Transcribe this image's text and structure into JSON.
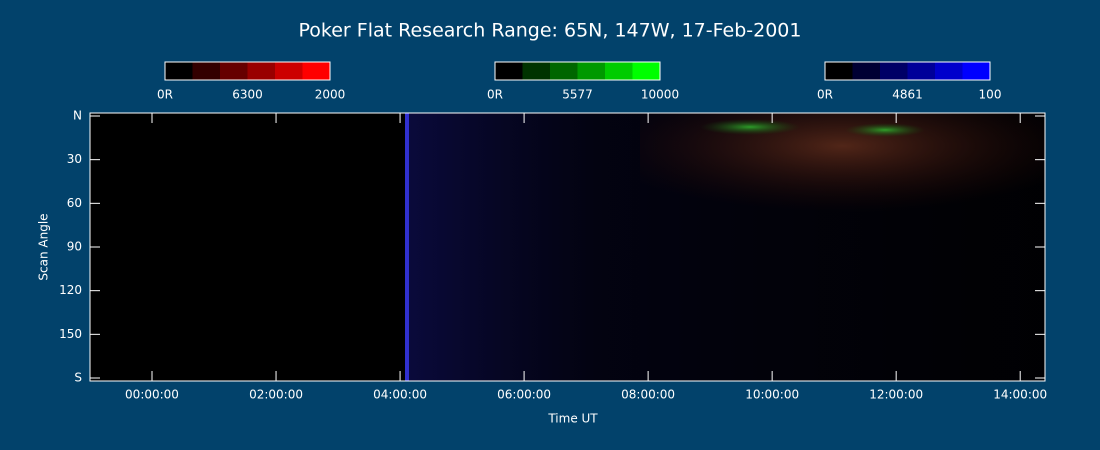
{
  "chart_data": {
    "type": "keogram",
    "title": "Poker Flat Research Range: 65N, 147W, 17-Feb-2001",
    "x_label": "Time UT",
    "y_label": "Scan Angle",
    "xlim": [
      -1,
      14.4
    ],
    "xticks": [
      {
        "value": 0,
        "label": "00:00:00"
      },
      {
        "value": 2,
        "label": "02:00:00"
      },
      {
        "value": 4,
        "label": "04:00:00"
      },
      {
        "value": 6,
        "label": "06:00:00"
      },
      {
        "value": 8,
        "label": "08:00:00"
      },
      {
        "value": 10,
        "label": "10:00:00"
      },
      {
        "value": 12,
        "label": "12:00:00"
      },
      {
        "value": 14,
        "label": "14:00:00"
      }
    ],
    "ylim": [
      0,
      180
    ],
    "yticks": [
      {
        "value": 0,
        "label": "N"
      },
      30,
      60,
      90,
      120,
      150,
      {
        "value": 180,
        "label": "S"
      }
    ],
    "colorbars": [
      {
        "color": "#ff0000",
        "min_label": "0R",
        "wavelength": "6300",
        "max": 2000
      },
      {
        "color": "#00ff00",
        "min_label": "0R",
        "wavelength": "5577",
        "max": 10000
      },
      {
        "color": "#0000ff",
        "min_label": "0R",
        "wavelength": "4861",
        "max": 100
      }
    ]
  }
}
